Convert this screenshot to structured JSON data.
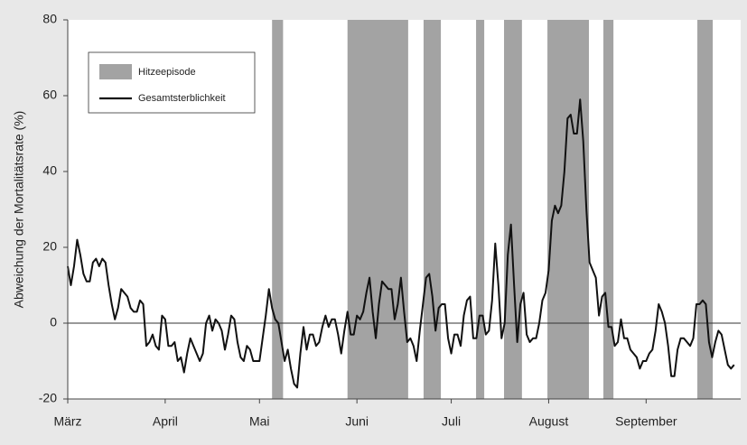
{
  "chart_data": {
    "type": "line",
    "ylabel": "Abweichung der Mortalitätsrate (%)",
    "ylim": [
      -20,
      80
    ],
    "yticks": [
      -20,
      0,
      20,
      40,
      60,
      80
    ],
    "reference_line": 0,
    "categories": [
      "März",
      null,
      null,
      null,
      null,
      null,
      null,
      null,
      null,
      null,
      null,
      null,
      null,
      null,
      null,
      null,
      null,
      null,
      null,
      null,
      null,
      null,
      null,
      null,
      null,
      null,
      null,
      null,
      null,
      null,
      null,
      "April",
      null,
      null,
      null,
      null,
      null,
      null,
      null,
      null,
      null,
      null,
      null,
      null,
      null,
      null,
      null,
      null,
      null,
      null,
      null,
      null,
      null,
      null,
      null,
      null,
      null,
      null,
      null,
      null,
      null,
      "Mai",
      null,
      null,
      null,
      null,
      null,
      null,
      null,
      null,
      null,
      null,
      null,
      null,
      null,
      null,
      null,
      null,
      null,
      null,
      null,
      null,
      null,
      null,
      null,
      null,
      null,
      null,
      null,
      null,
      null,
      null,
      "Juni",
      null,
      null,
      null,
      null,
      null,
      null,
      null,
      null,
      null,
      null,
      null,
      null,
      null,
      null,
      null,
      null,
      null,
      null,
      null,
      null,
      null,
      null,
      null,
      null,
      null,
      null,
      null,
      null,
      null,
      "Juli",
      null,
      null,
      null,
      null,
      null,
      null,
      null,
      null,
      null,
      null,
      null,
      null,
      null,
      null,
      null,
      null,
      null,
      null,
      null,
      null,
      null,
      null,
      null,
      null,
      null,
      null,
      null,
      null,
      null,
      null,
      "August",
      null,
      null,
      null,
      null,
      null,
      null,
      null,
      null,
      null,
      null,
      null,
      null,
      null,
      null,
      null,
      null,
      null,
      null,
      null,
      null,
      null,
      null,
      null,
      null,
      null,
      null,
      null,
      null,
      null,
      null,
      "September",
      null,
      null,
      null,
      null,
      null,
      null,
      null,
      null,
      null,
      null,
      null,
      null,
      null,
      null,
      null,
      null,
      null,
      null,
      null,
      null,
      null,
      null,
      null,
      null,
      null,
      null,
      null,
      null
    ],
    "episodes": {
      "name": "Hitzeepisode",
      "color": "#a3a3a3",
      "ranges": [
        [
          65,
          68.5
        ],
        [
          89,
          108.3
        ],
        [
          113.2,
          118.7
        ],
        [
          129.9,
          132.5
        ],
        [
          138.8,
          144.5
        ],
        [
          152.6,
          165.8
        ],
        [
          170.4,
          173.6
        ],
        [
          200.3,
          205.2
        ]
      ]
    },
    "series": [
      {
        "name": "Gesamtsterblichkeit",
        "color": "#111111",
        "values": [
          15,
          10,
          15,
          22,
          18,
          13,
          11,
          11,
          16,
          17,
          15,
          17,
          16,
          10,
          5,
          1,
          4,
          9,
          8,
          7,
          4,
          3,
          3,
          6,
          5,
          -6,
          -5,
          -3,
          -6,
          -7,
          2,
          1,
          -6,
          -6,
          -5,
          -10,
          -9,
          -13,
          -8,
          -4,
          -6,
          -8,
          -10,
          -8,
          0,
          2,
          -2,
          1,
          0,
          -2,
          -7,
          -3,
          2,
          1,
          -5,
          -9,
          -10,
          -6,
          -7,
          -10,
          -10,
          -10,
          -4,
          2,
          9,
          4,
          1,
          0,
          -5,
          -10,
          -7,
          -12,
          -16,
          -17,
          -8,
          -1,
          -7,
          -3,
          -3,
          -6,
          -5,
          -1,
          2,
          -1,
          1,
          1,
          -3,
          -8,
          -2,
          3,
          -3,
          -3,
          2,
          1,
          3,
          8,
          12,
          3,
          -4,
          5,
          11,
          10,
          9,
          9,
          1,
          5,
          12,
          3,
          -5,
          -4,
          -6,
          -10,
          -2,
          5,
          12,
          13,
          7,
          -2,
          4,
          5,
          5,
          -4,
          -8,
          -3,
          -3,
          -6,
          2,
          6,
          7,
          -4,
          -4,
          2,
          2,
          -3,
          -2,
          6,
          21,
          10,
          -4,
          0,
          18,
          26,
          10,
          -5,
          5,
          8,
          -3,
          -5,
          -4,
          -4,
          0,
          6,
          8,
          14,
          27,
          31,
          29,
          31,
          40,
          54,
          55,
          50,
          50,
          59,
          48,
          30,
          16,
          14,
          12,
          2,
          7,
          8,
          -1,
          -1,
          -6,
          -5,
          1,
          -4,
          -4,
          -7,
          -8,
          -9,
          -12,
          -10,
          -10,
          -8,
          -7,
          -2,
          5,
          3,
          0,
          -6,
          -14,
          -14,
          -7,
          -4,
          -4,
          -5,
          -6,
          -4,
          5,
          5,
          6,
          5,
          -5,
          -9,
          -5,
          -2,
          -3,
          -7,
          -11,
          -12,
          -11
        ]
      }
    ]
  }
}
